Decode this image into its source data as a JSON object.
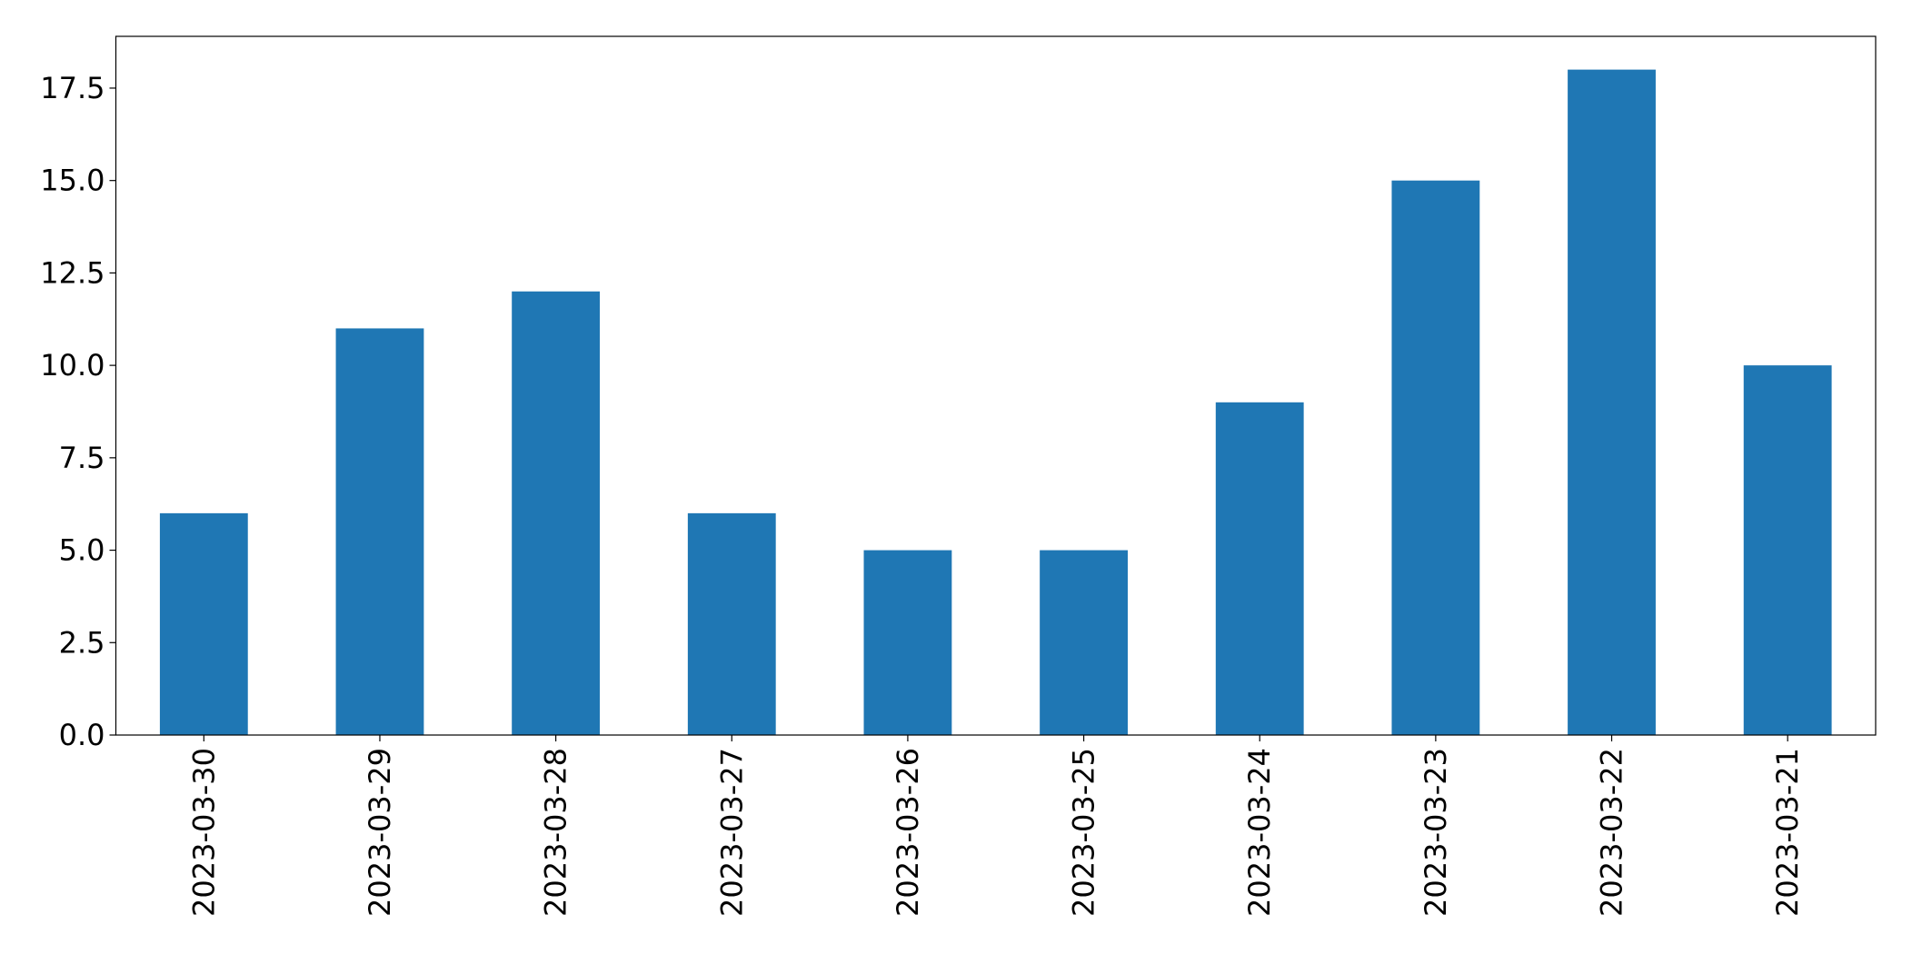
{
  "chart_data": {
    "type": "bar",
    "categories": [
      "2023-03-30",
      "2023-03-29",
      "2023-03-28",
      "2023-03-27",
      "2023-03-26",
      "2023-03-25",
      "2023-03-24",
      "2023-03-23",
      "2023-03-22",
      "2023-03-21"
    ],
    "values": [
      6,
      11,
      12,
      6,
      5,
      5,
      9,
      15,
      18,
      10
    ],
    "color": "#1f77b4",
    "ylim": [
      0,
      18.9
    ],
    "yticks": [
      {
        "value": 0,
        "label": "0.0"
      },
      {
        "value": 2.5,
        "label": "2.5"
      },
      {
        "value": 5,
        "label": "5.0"
      },
      {
        "value": 7.5,
        "label": "7.5"
      },
      {
        "value": 10,
        "label": "10.0"
      },
      {
        "value": 12.5,
        "label": "12.5"
      },
      {
        "value": 15,
        "label": "15.0"
      },
      {
        "value": 17.5,
        "label": "17.5"
      }
    ],
    "grid": false
  }
}
